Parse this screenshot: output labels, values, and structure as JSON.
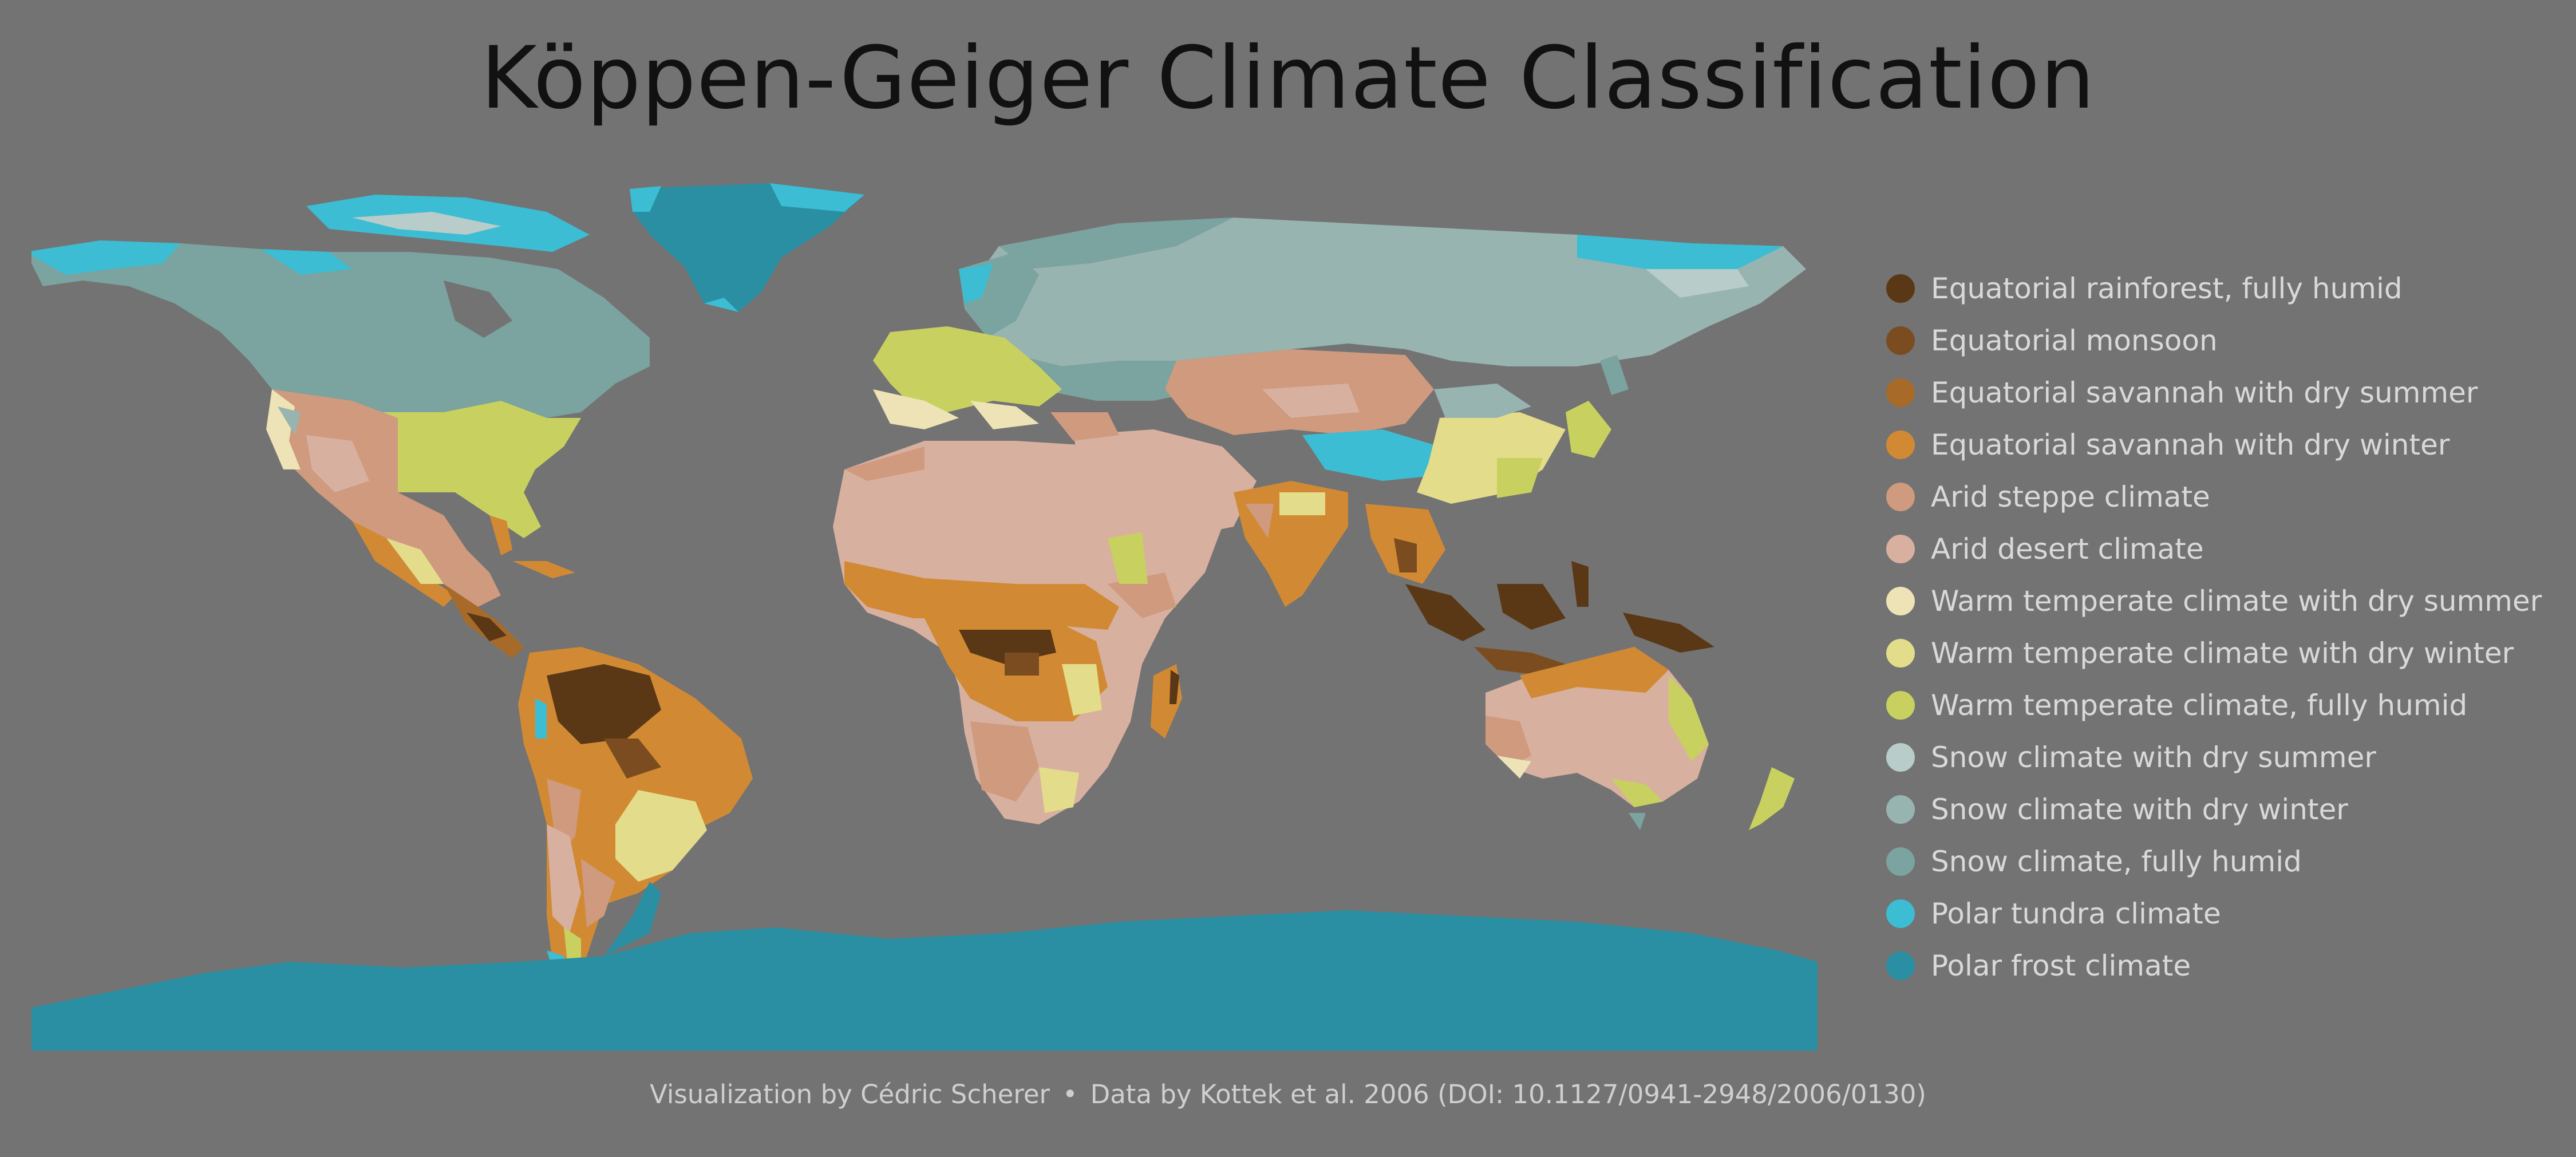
{
  "title": "Köppen-Geiger Climate Classification",
  "legend": [
    {
      "label": "Equatorial rainforest, fully humid",
      "color": "#5a3816"
    },
    {
      "label": "Equatorial monsoon",
      "color": "#7a4c1f"
    },
    {
      "label": "Equatorial savannah with dry summer",
      "color": "#a86a28"
    },
    {
      "label": "Equatorial savannah with dry winter",
      "color": "#d18a33"
    },
    {
      "label": "Arid steppe climate",
      "color": "#cf9a7e"
    },
    {
      "label": "Arid desert climate",
      "color": "#d8b0a0"
    },
    {
      "label": "Warm temperate climate with dry summer",
      "color": "#ede3b6"
    },
    {
      "label": "Warm temperate climate with dry winter",
      "color": "#e3dc8a"
    },
    {
      "label": "Warm temperate climate, fully humid",
      "color": "#c8d15f"
    },
    {
      "label": "Snow climate with dry summer",
      "color": "#b8ccca"
    },
    {
      "label": "Snow climate with dry winter",
      "color": "#98b4b0"
    },
    {
      "label": "Snow climate, fully humid",
      "color": "#7ba39f"
    },
    {
      "label": "Polar tundra climate",
      "color": "#3cbdd3"
    },
    {
      "label": "Polar frost climate",
      "color": "#2a8fa2"
    }
  ],
  "caption": {
    "credit": "Visualization by Cédric Scherer",
    "separator": "•",
    "source": "Data by Kottek et al. 2006 (DOI: 10.1127/0941-2948/2006/0130)"
  }
}
